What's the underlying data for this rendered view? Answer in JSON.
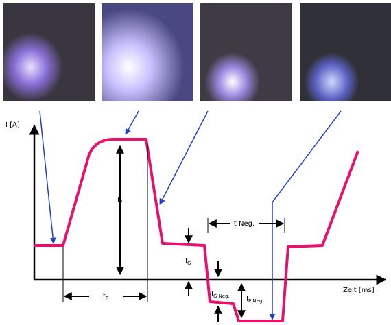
{
  "axis": {
    "y_label": "I [A]",
    "x_label": "Zeit [ms]"
  },
  "labels": {
    "peak_current": {
      "main": "I",
      "sub": "P"
    },
    "peak_time": {
      "main": "t",
      "sub": "P"
    },
    "base_current": {
      "main": "I",
      "sub": "G"
    },
    "base_current_neg": {
      "main": "I",
      "sub": "G Neg."
    },
    "peak_current_neg": {
      "main": "I",
      "sub": "P Neg."
    },
    "time_neg": "t Neg."
  }
}
